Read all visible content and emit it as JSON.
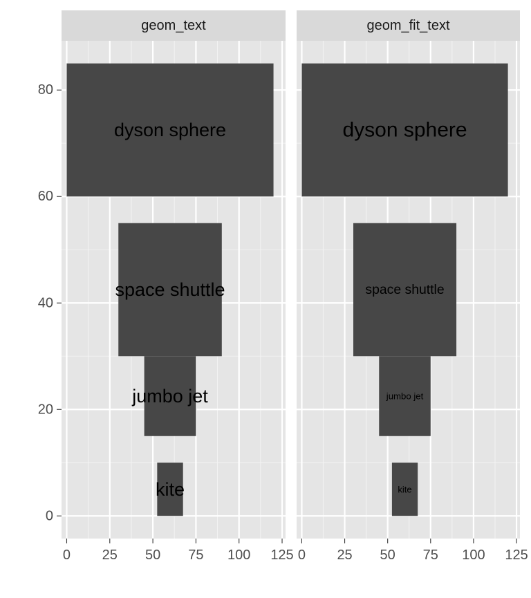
{
  "chart_data": {
    "type": "bar",
    "grid": true,
    "x_ticks": [
      0,
      25,
      50,
      75,
      100,
      125
    ],
    "y_ticks": [
      0,
      20,
      40,
      60,
      80
    ],
    "xlim": [
      -3,
      127
    ],
    "ylim": [
      -4.25,
      89.25
    ],
    "fill_color": "#474747",
    "panel_background": "#e5e5e5",
    "strip_background": "#d9d9d9",
    "panels": [
      {
        "strip": "geom_text",
        "text_mode": "fixed",
        "items": [
          {
            "label": "dyson sphere",
            "xmin": 0,
            "xmax": 120,
            "ymin": 60,
            "ymax": 85
          },
          {
            "label": "space shuttle",
            "xmin": 30,
            "xmax": 90,
            "ymin": 30,
            "ymax": 55
          },
          {
            "label": "jumbo jet",
            "xmin": 45,
            "xmax": 75,
            "ymin": 15,
            "ymax": 30
          },
          {
            "label": "kite",
            "xmin": 52.5,
            "xmax": 67.5,
            "ymin": 0,
            "ymax": 10
          }
        ]
      },
      {
        "strip": "geom_fit_text",
        "text_mode": "fit",
        "items": [
          {
            "label": "dyson sphere",
            "xmin": 0,
            "xmax": 120,
            "ymin": 60,
            "ymax": 85
          },
          {
            "label": "space shuttle",
            "xmin": 30,
            "xmax": 90,
            "ymin": 30,
            "ymax": 55
          },
          {
            "label": "jumbo jet",
            "xmin": 45,
            "xmax": 75,
            "ymin": 15,
            "ymax": 30
          },
          {
            "label": "kite",
            "xmin": 52.5,
            "xmax": 67.5,
            "ymin": 0,
            "ymax": 10
          }
        ]
      }
    ]
  }
}
